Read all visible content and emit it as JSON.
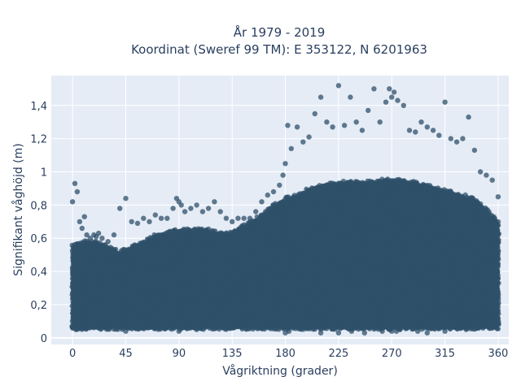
{
  "chart_data": {
    "type": "scatter",
    "title_line1": "År 1979 - 2019",
    "title_line2": "Koordinat (Sweref 99 TM): E 353122, N 6201963",
    "xlabel": "Vågriktning (grader)",
    "ylabel": "Signifikant våghöjd (m)",
    "xlim": [
      -18,
      369
    ],
    "ylim": [
      -0.04,
      1.58
    ],
    "x_ticks": [
      0,
      45,
      90,
      135,
      180,
      225,
      270,
      315,
      360
    ],
    "x_tick_labels": [
      "0",
      "45",
      "90",
      "135",
      "180",
      "225",
      "270",
      "315",
      "360"
    ],
    "y_ticks": [
      0,
      0.2,
      0.4,
      0.6,
      0.8,
      1.0,
      1.2,
      1.4
    ],
    "y_tick_labels": [
      "0",
      "0,2",
      "0,4",
      "0,6",
      "0,8",
      "1",
      "1,2",
      "1,4"
    ],
    "grid": true,
    "marker_color": "#2f5069",
    "plot_background": "#e5ecf6",
    "series": [
      {
        "x": [
          0,
          2,
          4,
          6,
          8,
          10,
          12,
          15,
          18,
          20,
          22,
          25,
          30,
          35,
          40,
          45,
          50,
          55,
          60,
          65,
          70,
          75,
          80,
          85,
          88,
          90,
          92,
          95,
          100,
          105,
          110,
          115,
          120,
          125,
          130,
          135,
          140,
          145,
          150,
          155,
          160,
          165,
          170,
          175,
          178,
          180,
          182,
          185,
          190,
          195,
          200,
          205,
          210,
          215,
          220,
          225,
          230,
          235,
          240,
          245,
          250,
          255,
          260,
          265,
          268,
          270,
          272,
          275,
          280,
          285,
          290,
          295,
          300,
          305,
          310,
          315,
          320,
          325,
          330,
          335,
          340,
          345,
          350,
          355,
          360,
          0,
          3,
          45,
          90,
          105,
          180,
          183,
          210,
          225,
          236,
          247,
          262,
          268,
          270,
          274,
          277,
          292,
          300,
          315,
          333
        ],
        "y": [
          0.82,
          0.93,
          0.88,
          0.7,
          0.66,
          0.73,
          0.62,
          0.6,
          0.62,
          0.61,
          0.63,
          0.6,
          0.58,
          0.62,
          0.78,
          0.84,
          0.7,
          0.69,
          0.72,
          0.7,
          0.74,
          0.72,
          0.72,
          0.78,
          0.84,
          0.82,
          0.8,
          0.76,
          0.78,
          0.8,
          0.76,
          0.78,
          0.82,
          0.76,
          0.72,
          0.7,
          0.72,
          0.72,
          0.72,
          0.76,
          0.82,
          0.86,
          0.88,
          0.92,
          0.98,
          1.05,
          1.28,
          1.14,
          1.27,
          1.18,
          1.21,
          1.35,
          1.45,
          1.3,
          1.27,
          1.52,
          1.28,
          1.45,
          1.3,
          1.25,
          1.37,
          1.5,
          1.3,
          1.42,
          1.5,
          1.45,
          1.48,
          1.43,
          1.4,
          1.25,
          1.24,
          1.3,
          1.27,
          1.25,
          1.22,
          1.42,
          1.2,
          1.18,
          1.2,
          1.33,
          1.13,
          1.0,
          0.98,
          0.95,
          0.85,
          0.06,
          0.05,
          0.04,
          0.04,
          0.05,
          0.03,
          0.04,
          0.03,
          0.03,
          0.04,
          0.03,
          0.04,
          0.05,
          0.04,
          0.04,
          0.05,
          0.04,
          0.03,
          0.04,
          0.05
        ]
      }
    ],
    "upper_envelope": {
      "x": [
        0,
        10,
        20,
        30,
        40,
        50,
        60,
        70,
        80,
        90,
        100,
        110,
        120,
        130,
        140,
        150,
        160,
        170,
        180,
        190,
        200,
        210,
        220,
        230,
        240,
        250,
        260,
        270,
        280,
        290,
        300,
        310,
        320,
        330,
        340,
        350,
        360
      ],
      "y": [
        0.56,
        0.58,
        0.58,
        0.55,
        0.52,
        0.55,
        0.58,
        0.62,
        0.64,
        0.66,
        0.66,
        0.66,
        0.64,
        0.63,
        0.66,
        0.7,
        0.74,
        0.8,
        0.84,
        0.86,
        0.9,
        0.92,
        0.93,
        0.94,
        0.94,
        0.94,
        0.95,
        0.96,
        0.95,
        0.94,
        0.92,
        0.9,
        0.88,
        0.86,
        0.84,
        0.78,
        0.7
      ]
    },
    "lower_bound": 0.06
  }
}
